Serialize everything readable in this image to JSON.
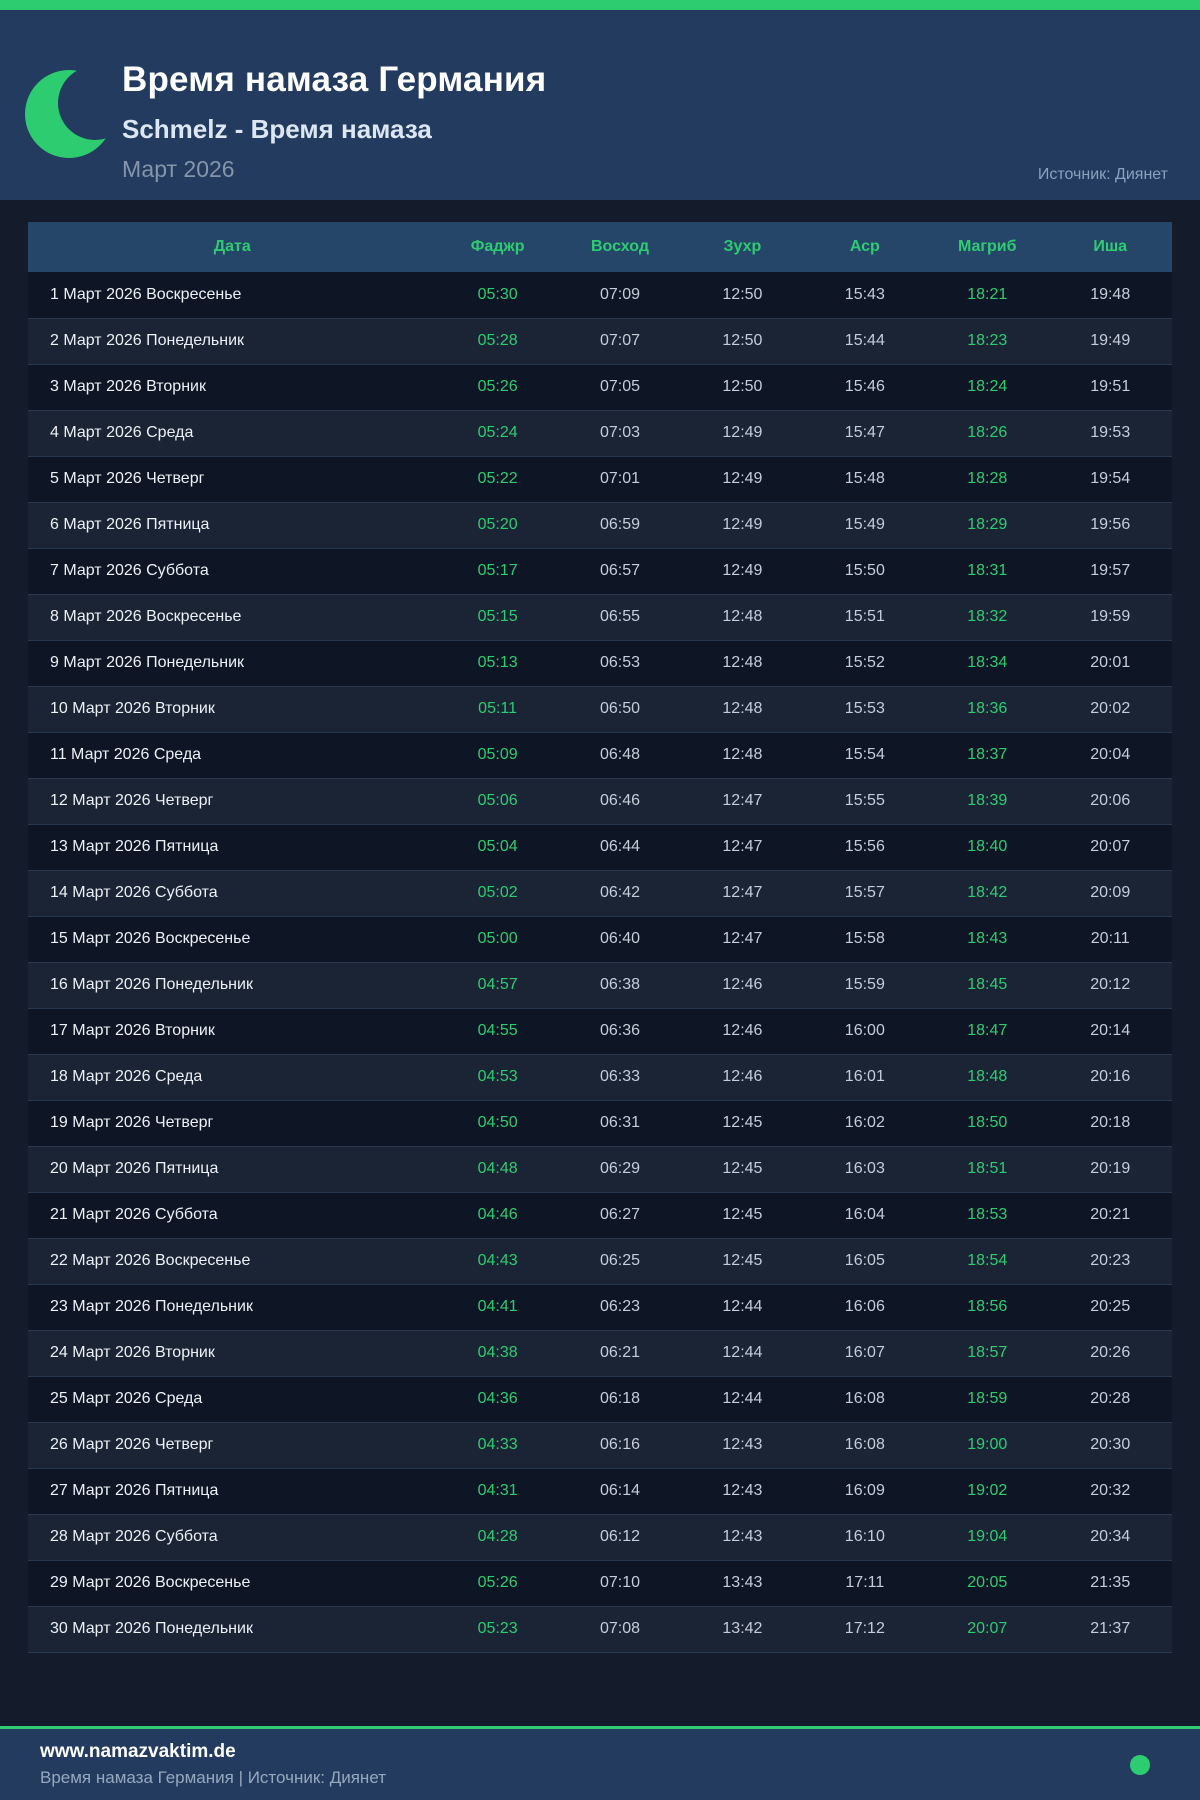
{
  "header": {
    "title": "Время намаза Германия",
    "subtitle": "Schmelz - Время намаза",
    "period": "Март 2026",
    "source": "Источник: Диянет"
  },
  "table": {
    "columns": [
      "Дата",
      "Фаджр",
      "Восход",
      "Зухр",
      "Аср",
      "Магриб",
      "Иша"
    ],
    "rows": [
      {
        "date": "1 Март 2026 Воскресенье",
        "times": [
          "05:30",
          "07:09",
          "12:50",
          "15:43",
          "18:21",
          "19:48"
        ]
      },
      {
        "date": "2 Март 2026 Понедельник",
        "times": [
          "05:28",
          "07:07",
          "12:50",
          "15:44",
          "18:23",
          "19:49"
        ]
      },
      {
        "date": "3 Март 2026 Вторник",
        "times": [
          "05:26",
          "07:05",
          "12:50",
          "15:46",
          "18:24",
          "19:51"
        ]
      },
      {
        "date": "4 Март 2026 Среда",
        "times": [
          "05:24",
          "07:03",
          "12:49",
          "15:47",
          "18:26",
          "19:53"
        ]
      },
      {
        "date": "5 Март 2026 Четверг",
        "times": [
          "05:22",
          "07:01",
          "12:49",
          "15:48",
          "18:28",
          "19:54"
        ]
      },
      {
        "date": "6 Март 2026 Пятница",
        "times": [
          "05:20",
          "06:59",
          "12:49",
          "15:49",
          "18:29",
          "19:56"
        ]
      },
      {
        "date": "7 Март 2026 Суббота",
        "times": [
          "05:17",
          "06:57",
          "12:49",
          "15:50",
          "18:31",
          "19:57"
        ]
      },
      {
        "date": "8 Март 2026 Воскресенье",
        "times": [
          "05:15",
          "06:55",
          "12:48",
          "15:51",
          "18:32",
          "19:59"
        ]
      },
      {
        "date": "9 Март 2026 Понедельник",
        "times": [
          "05:13",
          "06:53",
          "12:48",
          "15:52",
          "18:34",
          "20:01"
        ]
      },
      {
        "date": "10 Март 2026 Вторник",
        "times": [
          "05:11",
          "06:50",
          "12:48",
          "15:53",
          "18:36",
          "20:02"
        ]
      },
      {
        "date": "11 Март 2026 Среда",
        "times": [
          "05:09",
          "06:48",
          "12:48",
          "15:54",
          "18:37",
          "20:04"
        ]
      },
      {
        "date": "12 Март 2026 Четверг",
        "times": [
          "05:06",
          "06:46",
          "12:47",
          "15:55",
          "18:39",
          "20:06"
        ]
      },
      {
        "date": "13 Март 2026 Пятница",
        "times": [
          "05:04",
          "06:44",
          "12:47",
          "15:56",
          "18:40",
          "20:07"
        ]
      },
      {
        "date": "14 Март 2026 Суббота",
        "times": [
          "05:02",
          "06:42",
          "12:47",
          "15:57",
          "18:42",
          "20:09"
        ]
      },
      {
        "date": "15 Март 2026 Воскресенье",
        "times": [
          "05:00",
          "06:40",
          "12:47",
          "15:58",
          "18:43",
          "20:11"
        ]
      },
      {
        "date": "16 Март 2026 Понедельник",
        "times": [
          "04:57",
          "06:38",
          "12:46",
          "15:59",
          "18:45",
          "20:12"
        ]
      },
      {
        "date": "17 Март 2026 Вторник",
        "times": [
          "04:55",
          "06:36",
          "12:46",
          "16:00",
          "18:47",
          "20:14"
        ]
      },
      {
        "date": "18 Март 2026 Среда",
        "times": [
          "04:53",
          "06:33",
          "12:46",
          "16:01",
          "18:48",
          "20:16"
        ]
      },
      {
        "date": "19 Март 2026 Четверг",
        "times": [
          "04:50",
          "06:31",
          "12:45",
          "16:02",
          "18:50",
          "20:18"
        ]
      },
      {
        "date": "20 Март 2026 Пятница",
        "times": [
          "04:48",
          "06:29",
          "12:45",
          "16:03",
          "18:51",
          "20:19"
        ]
      },
      {
        "date": "21 Март 2026 Суббота",
        "times": [
          "04:46",
          "06:27",
          "12:45",
          "16:04",
          "18:53",
          "20:21"
        ]
      },
      {
        "date": "22 Март 2026 Воскресенье",
        "times": [
          "04:43",
          "06:25",
          "12:45",
          "16:05",
          "18:54",
          "20:23"
        ]
      },
      {
        "date": "23 Март 2026 Понедельник",
        "times": [
          "04:41",
          "06:23",
          "12:44",
          "16:06",
          "18:56",
          "20:25"
        ]
      },
      {
        "date": "24 Март 2026 Вторник",
        "times": [
          "04:38",
          "06:21",
          "12:44",
          "16:07",
          "18:57",
          "20:26"
        ]
      },
      {
        "date": "25 Март 2026 Среда",
        "times": [
          "04:36",
          "06:18",
          "12:44",
          "16:08",
          "18:59",
          "20:28"
        ]
      },
      {
        "date": "26 Март 2026 Четверг",
        "times": [
          "04:33",
          "06:16",
          "12:43",
          "16:08",
          "19:00",
          "20:30"
        ]
      },
      {
        "date": "27 Март 2026 Пятница",
        "times": [
          "04:31",
          "06:14",
          "12:43",
          "16:09",
          "19:02",
          "20:32"
        ]
      },
      {
        "date": "28 Март 2026 Суббота",
        "times": [
          "04:28",
          "06:12",
          "12:43",
          "16:10",
          "19:04",
          "20:34"
        ]
      },
      {
        "date": "29 Март 2026 Воскресенье",
        "times": [
          "05:26",
          "07:10",
          "13:43",
          "17:11",
          "20:05",
          "21:35"
        ]
      },
      {
        "date": "30 Март 2026 Понедельник",
        "times": [
          "05:23",
          "07:08",
          "13:42",
          "17:12",
          "20:07",
          "21:37"
        ]
      }
    ]
  },
  "footer": {
    "site": "www.namazvaktim.de",
    "tagline": "Время намаза Германия | Источник: Диянет"
  },
  "colors": {
    "accent_green": "#2ecc71",
    "header_bg": "#223b5e",
    "page_bg": "#141c2b",
    "table_header_bg": "#254569",
    "row_odd": "#0e1625",
    "row_even": "#1a2435",
    "time_text": "#c5cdd9",
    "muted_text": "#8aa2c0"
  },
  "icons": {
    "moon": "crescent-moon-icon",
    "dot": "green-dot-icon"
  }
}
